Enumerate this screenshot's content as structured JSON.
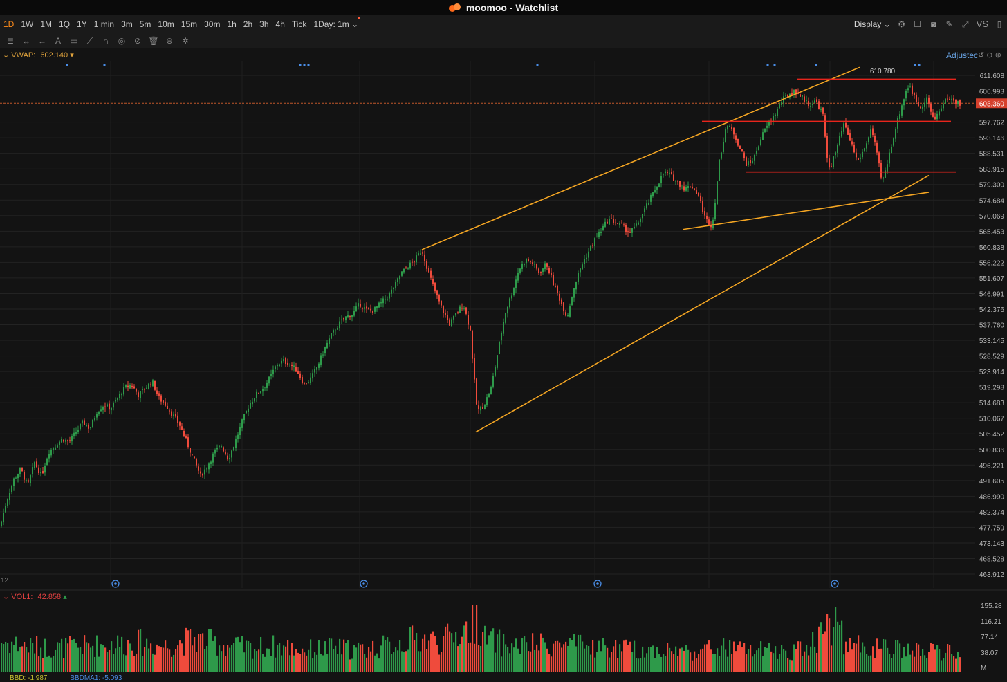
{
  "app": {
    "title": "moomoo - Watchlist"
  },
  "timeframes": [
    "1D",
    "1W",
    "1M",
    "1Q",
    "1Y",
    "1 min",
    "3m",
    "5m",
    "10m",
    "15m",
    "30m",
    "1h",
    "2h",
    "3h",
    "4h",
    "Tick",
    "1Day: 1m"
  ],
  "active_timeframe": "1D",
  "toolbar_right": {
    "display_label": "Display",
    "vs_label": "VS"
  },
  "indicators": {
    "vwap_label": "VWAP:",
    "vwap_value": "602.140",
    "vol_label": "VOL1:",
    "vol_value": "42.858",
    "adjusted_label": "Adjustec"
  },
  "chart_data": {
    "type": "candlestick",
    "price_axis_ticks": [
      "611.608",
      "606.993",
      "603.360",
      "597.762",
      "593.146",
      "588.531",
      "583.915",
      "579.300",
      "574.684",
      "570.069",
      "565.453",
      "560.838",
      "556.222",
      "551.607",
      "546.991",
      "542.376",
      "537.760",
      "533.145",
      "528.529",
      "523.914",
      "519.298",
      "514.683",
      "510.067",
      "505.452",
      "500.836",
      "496.221",
      "491.605",
      "486.990",
      "482.374",
      "477.759",
      "473.143",
      "468.528",
      "463.912"
    ],
    "current_price": "603.360",
    "high_annotation": "610.780",
    "volume_axis_ticks": [
      "155.28",
      "116.21",
      "77.14",
      "38.07",
      "M"
    ],
    "ylim": [
      463.912,
      611.608
    ],
    "close_path": [
      [
        0,
        478
      ],
      [
        10,
        486
      ],
      [
        20,
        492
      ],
      [
        30,
        495
      ],
      [
        40,
        490
      ],
      [
        50,
        497
      ],
      [
        60,
        493
      ],
      [
        70,
        500
      ],
      [
        80,
        502
      ],
      [
        90,
        504
      ],
      [
        100,
        503
      ],
      [
        110,
        506
      ],
      [
        120,
        509
      ],
      [
        130,
        507
      ],
      [
        140,
        512
      ],
      [
        150,
        514
      ],
      [
        160,
        513
      ],
      [
        170,
        516
      ],
      [
        180,
        519
      ],
      [
        190,
        520
      ],
      [
        200,
        517
      ],
      [
        210,
        519
      ],
      [
        220,
        521
      ],
      [
        230,
        516
      ],
      [
        240,
        514
      ],
      [
        250,
        511
      ],
      [
        260,
        508
      ],
      [
        270,
        503
      ],
      [
        280,
        498
      ],
      [
        290,
        493
      ],
      [
        300,
        496
      ],
      [
        310,
        500
      ],
      [
        320,
        502
      ],
      [
        330,
        498
      ],
      [
        340,
        503
      ],
      [
        350,
        509
      ],
      [
        360,
        514
      ],
      [
        370,
        517
      ],
      [
        380,
        519
      ],
      [
        390,
        522
      ],
      [
        400,
        526
      ],
      [
        410,
        527
      ],
      [
        420,
        526
      ],
      [
        430,
        524
      ],
      [
        440,
        520
      ],
      [
        450,
        522
      ],
      [
        460,
        526
      ],
      [
        470,
        531
      ],
      [
        480,
        535
      ],
      [
        490,
        538
      ],
      [
        500,
        540
      ],
      [
        510,
        541
      ],
      [
        520,
        544
      ],
      [
        530,
        542
      ],
      [
        540,
        542
      ],
      [
        550,
        544
      ],
      [
        560,
        546
      ],
      [
        570,
        549
      ],
      [
        580,
        553
      ],
      [
        590,
        555
      ],
      [
        600,
        557
      ],
      [
        610,
        560
      ],
      [
        620,
        553
      ],
      [
        630,
        547
      ],
      [
        640,
        542
      ],
      [
        650,
        538
      ],
      [
        660,
        541
      ],
      [
        670,
        544
      ],
      [
        680,
        536
      ],
      [
        685,
        523
      ],
      [
        690,
        512
      ],
      [
        700,
        514
      ],
      [
        710,
        519
      ],
      [
        720,
        530
      ],
      [
        730,
        541
      ],
      [
        740,
        547
      ],
      [
        750,
        554
      ],
      [
        760,
        557
      ],
      [
        770,
        556
      ],
      [
        780,
        553
      ],
      [
        790,
        556
      ],
      [
        800,
        550
      ],
      [
        810,
        545
      ],
      [
        820,
        540
      ],
      [
        830,
        549
      ],
      [
        840,
        555
      ],
      [
        850,
        559
      ],
      [
        860,
        563
      ],
      [
        870,
        566
      ],
      [
        880,
        569
      ],
      [
        890,
        568
      ],
      [
        900,
        567
      ],
      [
        910,
        565
      ],
      [
        920,
        567
      ],
      [
        930,
        571
      ],
      [
        940,
        575
      ],
      [
        950,
        579
      ],
      [
        960,
        583
      ],
      [
        970,
        582
      ],
      [
        980,
        580
      ],
      [
        990,
        578
      ],
      [
        1000,
        579
      ],
      [
        1010,
        576
      ],
      [
        1020,
        569
      ],
      [
        1030,
        567
      ],
      [
        1040,
        586
      ],
      [
        1050,
        597
      ],
      [
        1060,
        595
      ],
      [
        1070,
        590
      ],
      [
        1080,
        585
      ],
      [
        1090,
        587
      ],
      [
        1100,
        593
      ],
      [
        1110,
        597
      ],
      [
        1120,
        600
      ],
      [
        1130,
        604
      ],
      [
        1140,
        606
      ],
      [
        1150,
        607
      ],
      [
        1160,
        605
      ],
      [
        1170,
        603
      ],
      [
        1180,
        604
      ],
      [
        1190,
        600
      ],
      [
        1195,
        588
      ],
      [
        1200,
        584
      ],
      [
        1210,
        590
      ],
      [
        1220,
        597
      ],
      [
        1230,
        592
      ],
      [
        1240,
        586
      ],
      [
        1250,
        590
      ],
      [
        1260,
        596
      ],
      [
        1270,
        586
      ],
      [
        1275,
        580
      ],
      [
        1280,
        583
      ],
      [
        1290,
        592
      ],
      [
        1300,
        600
      ],
      [
        1310,
        607
      ],
      [
        1315,
        609
      ],
      [
        1320,
        606
      ],
      [
        1330,
        602
      ],
      [
        1340,
        605
      ],
      [
        1350,
        598
      ],
      [
        1360,
        602
      ],
      [
        1370,
        605
      ],
      [
        1380,
        604
      ],
      [
        1390,
        603
      ]
    ],
    "volume_path": [
      [
        0,
        85
      ],
      [
        40,
        70
      ],
      [
        80,
        65
      ],
      [
        120,
        70
      ],
      [
        160,
        75
      ],
      [
        200,
        80
      ],
      [
        240,
        70
      ],
      [
        280,
        90
      ],
      [
        320,
        75
      ],
      [
        360,
        65
      ],
      [
        400,
        70
      ],
      [
        440,
        60
      ],
      [
        480,
        65
      ],
      [
        520,
        60
      ],
      [
        560,
        70
      ],
      [
        600,
        90
      ],
      [
        640,
        85
      ],
      [
        680,
        120
      ],
      [
        690,
        150
      ],
      [
        700,
        90
      ],
      [
        740,
        70
      ],
      [
        800,
        75
      ],
      [
        840,
        70
      ],
      [
        880,
        65
      ],
      [
        920,
        60
      ],
      [
        960,
        60
      ],
      [
        1000,
        55
      ],
      [
        1040,
        65
      ],
      [
        1080,
        60
      ],
      [
        1120,
        55
      ],
      [
        1160,
        60
      ],
      [
        1200,
        130
      ],
      [
        1210,
        140
      ],
      [
        1220,
        80
      ],
      [
        1260,
        65
      ],
      [
        1300,
        60
      ],
      [
        1340,
        55
      ],
      [
        1390,
        55
      ]
    ],
    "trend_lines": [
      {
        "name": "channel-upper",
        "from": [
          610,
          560
        ],
        "to": [
          1243,
          614
        ]
      },
      {
        "name": "channel-lower",
        "from": [
          688,
          506
        ],
        "to": [
          1343,
          582
        ]
      },
      {
        "name": "wedge-lower",
        "from": [
          988,
          566
        ],
        "to": [
          1343,
          577
        ]
      }
    ],
    "resistance_levels": [
      {
        "name": "top-resistance",
        "x1": 1152,
        "x2": 1382,
        "price": 610.5
      },
      {
        "name": "mid-resistance",
        "x1": 1015,
        "x2": 1375,
        "price": 598.0
      },
      {
        "name": "support",
        "x1": 1078,
        "x2": 1382,
        "price": 583.0
      }
    ]
  },
  "bottom_indicators": {
    "a": "BBD: -1.987",
    "b": "BBDMA1: -5.093"
  },
  "colors": {
    "up": "#2e9a4a",
    "down": "#ef4b3c",
    "trend": "#f5a623",
    "level": "#e8251c",
    "grid": "#232323",
    "accent": "#ff8c1a"
  }
}
